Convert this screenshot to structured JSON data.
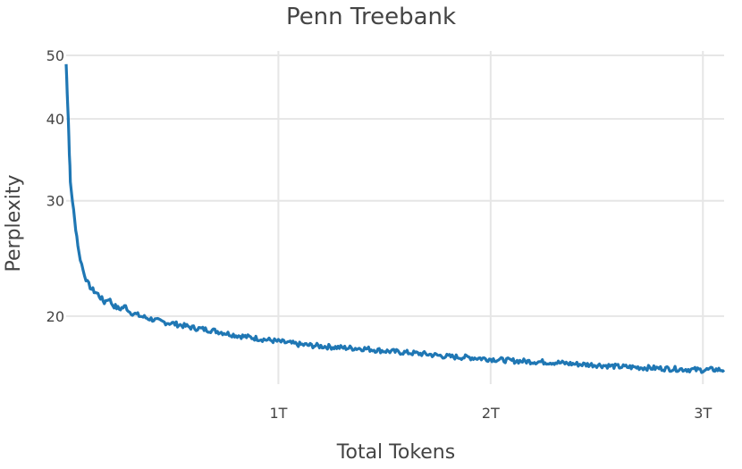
{
  "chart_data": {
    "type": "line",
    "title": "Penn Treebank",
    "xlabel": "Total Tokens",
    "ylabel": "Perplexity",
    "x_scale": "linear",
    "y_scale": "log",
    "xlim": [
      0,
      3.1
    ],
    "ylim": [
      16,
      50
    ],
    "x_ticks": [
      {
        "value": 1,
        "label": "1T"
      },
      {
        "value": 2,
        "label": "2T"
      },
      {
        "value": 3,
        "label": "3T"
      }
    ],
    "y_ticks": [
      {
        "value": 20,
        "label": "20"
      },
      {
        "value": 30,
        "label": "30"
      },
      {
        "value": 40,
        "label": "40"
      },
      {
        "value": 50,
        "label": "50"
      }
    ],
    "grid": true,
    "legend": "none",
    "series": [
      {
        "color": "#1f77b4",
        "x": [
          0.0,
          0.005,
          0.01,
          0.015,
          0.02,
          0.03,
          0.04,
          0.05,
          0.06,
          0.08,
          0.1,
          0.12,
          0.15,
          0.18,
          0.2,
          0.22,
          0.25,
          0.28,
          0.3,
          0.35,
          0.4,
          0.45,
          0.5,
          0.6,
          0.7,
          0.8,
          0.9,
          1.0,
          1.1,
          1.2,
          1.3,
          1.4,
          1.5,
          1.6,
          1.7,
          1.8,
          1.9,
          2.0,
          2.1,
          2.2,
          2.3,
          2.4,
          2.5,
          2.6,
          2.7,
          2.8,
          2.9,
          3.0,
          3.05,
          3.1
        ],
        "y": [
          48.5,
          44.0,
          40.0,
          35.5,
          32.0,
          30.0,
          28.0,
          26.5,
          25.0,
          23.5,
          22.5,
          22.0,
          21.6,
          21.0,
          21.3,
          20.8,
          20.5,
          20.7,
          20.3,
          20.0,
          19.8,
          19.6,
          19.5,
          19.2,
          19.0,
          18.7,
          18.5,
          18.3,
          18.1,
          18.0,
          17.9,
          17.85,
          17.7,
          17.6,
          17.5,
          17.35,
          17.3,
          17.2,
          17.1,
          17.05,
          17.0,
          16.9,
          16.85,
          16.75,
          16.7,
          16.65,
          16.6,
          16.55,
          16.58,
          16.55
        ]
      }
    ]
  }
}
